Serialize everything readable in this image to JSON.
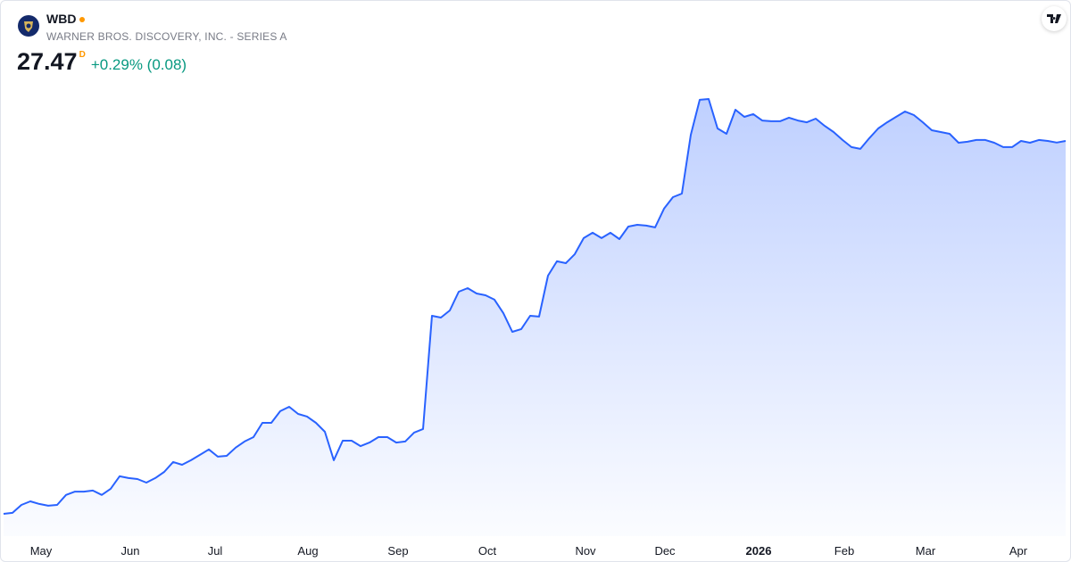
{
  "header": {
    "symbol": "WBD",
    "name": "WARNER BROS. DISCOVERY, INC. - SERIES A",
    "price": 27.47,
    "price_flag": "D",
    "change": "+0.29% (0.08)"
  },
  "chart_data": {
    "type": "line",
    "color": "#2962ff",
    "fill": true,
    "values": [
      8.7,
      8.75,
      9.15,
      9.33,
      9.2,
      9.11,
      9.15,
      9.65,
      9.82,
      9.82,
      9.87,
      9.65,
      9.96,
      10.59,
      10.5,
      10.45,
      10.27,
      10.5,
      10.81,
      11.31,
      11.17,
      11.4,
      11.67,
      11.94,
      11.58,
      11.62,
      12.03,
      12.34,
      12.56,
      13.28,
      13.28,
      13.87,
      14.09,
      13.73,
      13.6,
      13.28,
      12.83,
      11.4,
      12.38,
      12.38,
      12.11,
      12.29,
      12.56,
      12.56,
      12.29,
      12.34,
      12.79,
      12.97,
      18.67,
      18.58,
      18.94,
      19.88,
      20.06,
      19.79,
      19.7,
      19.48,
      18.8,
      17.86,
      18.0,
      18.67,
      18.63,
      20.69,
      21.41,
      21.32,
      21.77,
      22.58,
      22.85,
      22.58,
      22.85,
      22.53,
      23.16,
      23.25,
      23.21,
      23.12,
      24.06,
      24.64,
      24.82,
      27.78,
      29.54,
      29.58,
      28.1,
      27.83,
      29.04,
      28.68,
      28.82,
      28.5,
      28.46,
      28.46,
      28.64,
      28.5,
      28.41,
      28.59,
      28.23,
      27.92,
      27.52,
      27.16,
      27.07,
      27.61,
      28.1,
      28.41,
      28.68,
      28.95,
      28.77,
      28.41,
      28.01,
      27.92,
      27.83,
      27.38,
      27.43,
      27.52,
      27.52,
      27.38,
      27.16,
      27.16,
      27.47,
      27.38,
      27.52,
      27.47,
      27.39,
      27.47
    ],
    "xlim": [
      0,
      119
    ],
    "xticks": [
      {
        "value": 4.2,
        "label": "May"
      },
      {
        "value": 14.2,
        "label": "Jun"
      },
      {
        "value": 23.7,
        "label": "Jul"
      },
      {
        "value": 34.1,
        "label": "Aug"
      },
      {
        "value": 44.2,
        "label": "Sep"
      },
      {
        "value": 54.2,
        "label": "Oct"
      },
      {
        "value": 65.2,
        "label": "Nov"
      },
      {
        "value": 74.1,
        "label": "Dec"
      },
      {
        "value": 84.6,
        "label": "2026"
      },
      {
        "value": 94.2,
        "label": "Feb"
      },
      {
        "value": 103.3,
        "label": "Mar"
      },
      {
        "value": 113.7,
        "label": "Apr"
      }
    ],
    "bold_ticks": [
      "2026"
    ]
  }
}
